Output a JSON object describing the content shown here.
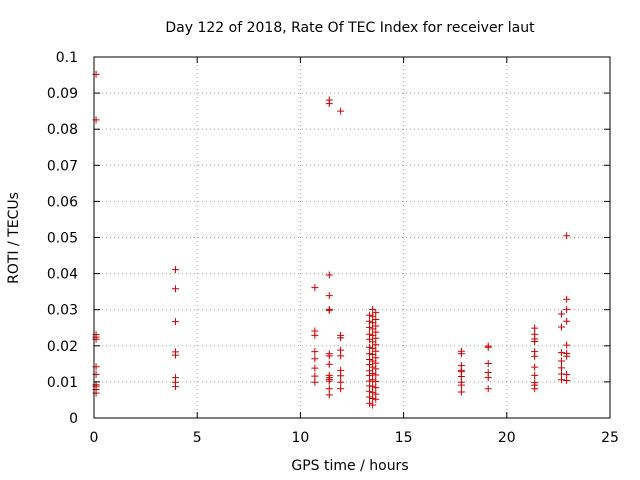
{
  "chart_data": {
    "type": "scatter",
    "title": "Day 122 of 2018, Rate Of TEC Index for receiver laut",
    "xlabel": "GPS time / hours",
    "ylabel": "ROTI / TECUs",
    "xlim": [
      0,
      25
    ],
    "ylim": [
      0,
      0.1
    ],
    "grid": true,
    "x_ticks": [
      0,
      5,
      10,
      15,
      20,
      25
    ],
    "x_tick_labels": [
      "0",
      "5",
      "10",
      "15",
      "20",
      "25"
    ],
    "y_ticks": [
      0,
      0.01,
      0.02,
      0.03,
      0.04,
      0.05,
      0.06,
      0.07,
      0.08,
      0.09,
      0.1
    ],
    "y_tick_labels": [
      "0",
      "0.01",
      "0.02",
      "0.03",
      "0.04",
      "0.05",
      "0.06",
      "0.07",
      "0.08",
      "0.09",
      "0.1"
    ],
    "marker": "+",
    "color": "#cc0000",
    "series": [
      {
        "name": "ROTI",
        "points": [
          [
            0.1,
            0.0952
          ],
          [
            0.1,
            0.0826
          ],
          [
            0.1,
            0.0231
          ],
          [
            0.1,
            0.0224
          ],
          [
            0.1,
            0.0218
          ],
          [
            0.1,
            0.0142
          ],
          [
            0.1,
            0.0121
          ],
          [
            0.1,
            0.0092
          ],
          [
            0.1,
            0.0088
          ],
          [
            0.1,
            0.0079
          ],
          [
            0.1,
            0.0069
          ],
          [
            3.95,
            0.0411
          ],
          [
            3.95,
            0.0358
          ],
          [
            3.95,
            0.0267
          ],
          [
            3.95,
            0.0183
          ],
          [
            3.95,
            0.0174
          ],
          [
            3.95,
            0.0112
          ],
          [
            3.95,
            0.0099
          ],
          [
            3.95,
            0.0087
          ],
          [
            10.7,
            0.0361
          ],
          [
            10.7,
            0.0241
          ],
          [
            10.7,
            0.0229
          ],
          [
            10.7,
            0.0184
          ],
          [
            10.7,
            0.0164
          ],
          [
            10.7,
            0.0138
          ],
          [
            10.7,
            0.0116
          ],
          [
            10.7,
            0.0099
          ],
          [
            11.4,
            0.0881
          ],
          [
            11.4,
            0.0871
          ],
          [
            11.95,
            0.085
          ],
          [
            11.4,
            0.0396
          ],
          [
            11.4,
            0.0339
          ],
          [
            11.4,
            0.0301
          ],
          [
            11.4,
            0.0298
          ],
          [
            11.4,
            0.0178
          ],
          [
            11.4,
            0.0172
          ],
          [
            11.4,
            0.0149
          ],
          [
            11.4,
            0.0118
          ],
          [
            11.4,
            0.0112
          ],
          [
            11.4,
            0.0107
          ],
          [
            11.4,
            0.0102
          ],
          [
            11.4,
            0.0081
          ],
          [
            11.4,
            0.0064
          ],
          [
            11.95,
            0.0229
          ],
          [
            11.95,
            0.0222
          ],
          [
            11.95,
            0.0188
          ],
          [
            11.95,
            0.0172
          ],
          [
            11.95,
            0.0132
          ],
          [
            11.95,
            0.0117
          ],
          [
            11.95,
            0.0099
          ],
          [
            11.95,
            0.0081
          ],
          [
            13.35,
            0.0285
          ],
          [
            13.35,
            0.0268
          ],
          [
            13.35,
            0.0251
          ],
          [
            13.35,
            0.0232
          ],
          [
            13.35,
            0.0218
          ],
          [
            13.35,
            0.0196
          ],
          [
            13.35,
            0.0178
          ],
          [
            13.35,
            0.0162
          ],
          [
            13.35,
            0.0148
          ],
          [
            13.35,
            0.0131
          ],
          [
            13.35,
            0.0118
          ],
          [
            13.35,
            0.0102
          ],
          [
            13.35,
            0.0089
          ],
          [
            13.35,
            0.0074
          ],
          [
            13.35,
            0.0058
          ],
          [
            13.35,
            0.0041
          ],
          [
            13.5,
            0.0301
          ],
          [
            13.5,
            0.0282
          ],
          [
            13.5,
            0.0264
          ],
          [
            13.5,
            0.0247
          ],
          [
            13.5,
            0.0229
          ],
          [
            13.5,
            0.0211
          ],
          [
            13.5,
            0.0193
          ],
          [
            13.5,
            0.0176
          ],
          [
            13.5,
            0.0158
          ],
          [
            13.5,
            0.0141
          ],
          [
            13.5,
            0.0123
          ],
          [
            13.5,
            0.0106
          ],
          [
            13.5,
            0.0088
          ],
          [
            13.5,
            0.0071
          ],
          [
            13.5,
            0.0054
          ],
          [
            13.5,
            0.0036
          ],
          [
            13.65,
            0.0292
          ],
          [
            13.65,
            0.0273
          ],
          [
            13.65,
            0.0255
          ],
          [
            13.65,
            0.0238
          ],
          [
            13.65,
            0.0221
          ],
          [
            13.65,
            0.0203
          ],
          [
            13.65,
            0.0185
          ],
          [
            13.65,
            0.0167
          ],
          [
            13.65,
            0.0152
          ],
          [
            13.65,
            0.0136
          ],
          [
            13.65,
            0.0119
          ],
          [
            13.65,
            0.0101
          ],
          [
            13.65,
            0.0084
          ],
          [
            13.65,
            0.0066
          ],
          [
            13.65,
            0.0052
          ],
          [
            17.8,
            0.0185
          ],
          [
            17.8,
            0.0178
          ],
          [
            17.8,
            0.0145
          ],
          [
            17.8,
            0.0132
          ],
          [
            17.8,
            0.0128
          ],
          [
            17.8,
            0.0115
          ],
          [
            17.8,
            0.0099
          ],
          [
            17.8,
            0.0091
          ],
          [
            17.8,
            0.0072
          ],
          [
            19.1,
            0.0199
          ],
          [
            19.1,
            0.0196
          ],
          [
            19.1,
            0.0151
          ],
          [
            19.1,
            0.0126
          ],
          [
            19.1,
            0.0112
          ],
          [
            19.1,
            0.0081
          ],
          [
            21.35,
            0.0249
          ],
          [
            21.35,
            0.0232
          ],
          [
            21.35,
            0.0219
          ],
          [
            21.35,
            0.0212
          ],
          [
            21.35,
            0.0184
          ],
          [
            21.35,
            0.0171
          ],
          [
            21.35,
            0.0141
          ],
          [
            21.35,
            0.0118
          ],
          [
            21.35,
            0.0098
          ],
          [
            21.35,
            0.0091
          ],
          [
            21.35,
            0.0081
          ],
          [
            22.9,
            0.0505
          ],
          [
            22.9,
            0.0329
          ],
          [
            22.9,
            0.0301
          ],
          [
            22.9,
            0.0268
          ],
          [
            22.9,
            0.0202
          ],
          [
            22.9,
            0.0179
          ],
          [
            22.9,
            0.0171
          ],
          [
            22.9,
            0.0121
          ],
          [
            22.9,
            0.0104
          ],
          [
            22.65,
            0.0288
          ],
          [
            22.65,
            0.0252
          ],
          [
            22.65,
            0.0181
          ],
          [
            22.65,
            0.0158
          ],
          [
            22.65,
            0.0139
          ],
          [
            22.65,
            0.0122
          ],
          [
            22.65,
            0.0106
          ]
        ]
      }
    ]
  }
}
